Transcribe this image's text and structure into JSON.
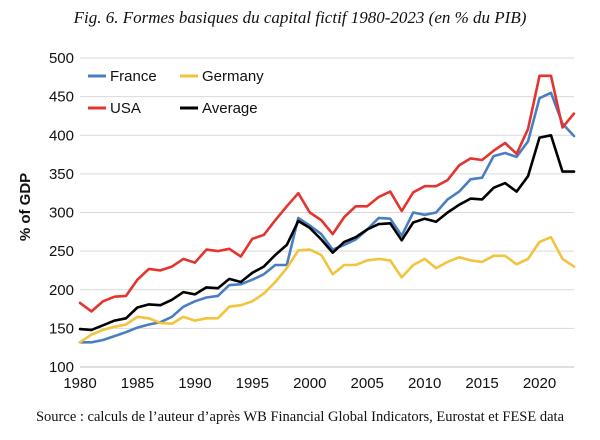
{
  "caption": {
    "title": "Fig. 6. Formes basiques du capital fictif 1980-2023 (en % du PIB)",
    "source": "Source : calculs de l’auteur d’après WB Financial Global Indicators, Eurostat et FESE data"
  },
  "chart_data": {
    "type": "line",
    "title": "Fig. 6. Formes basiques du capital fictif 1980-2023 (en % du PIB)",
    "xlabel": "",
    "ylabel": "% of GDP",
    "xlim": [
      1980,
      2023
    ],
    "ylim": [
      100,
      500
    ],
    "x_ticks": [
      1980,
      1985,
      1990,
      1995,
      2000,
      2005,
      2010,
      2015,
      2020
    ],
    "y_ticks": [
      100,
      150,
      200,
      250,
      300,
      350,
      400,
      450,
      500
    ],
    "grid": "horizontal",
    "legend_position": "top-left",
    "x": [
      1980,
      1981,
      1982,
      1983,
      1984,
      1985,
      1986,
      1987,
      1988,
      1989,
      1990,
      1991,
      1992,
      1993,
      1994,
      1995,
      1996,
      1997,
      1998,
      1999,
      2000,
      2001,
      2002,
      2003,
      2004,
      2005,
      2006,
      2007,
      2008,
      2009,
      2010,
      2011,
      2012,
      2013,
      2014,
      2015,
      2016,
      2017,
      2018,
      2019,
      2020,
      2021,
      2022,
      2023
    ],
    "series": [
      {
        "name": "France",
        "color": "#4a7ec2",
        "values": [
          132,
          132,
          135,
          140,
          145,
          151,
          155,
          158,
          165,
          178,
          185,
          190,
          192,
          206,
          207,
          213,
          220,
          232,
          232,
          293,
          283,
          272,
          252,
          258,
          265,
          278,
          293,
          292,
          270,
          300,
          297,
          300,
          317,
          327,
          343,
          345,
          373,
          377,
          372,
          392,
          448,
          455,
          415,
          399
        ]
      },
      {
        "name": "Germany",
        "color": "#f2c33c",
        "values": [
          132,
          142,
          148,
          152,
          155,
          165,
          163,
          157,
          156,
          165,
          160,
          163,
          163,
          178,
          180,
          185,
          195,
          210,
          228,
          251,
          252,
          245,
          220,
          232,
          232,
          238,
          240,
          238,
          216,
          232,
          240,
          228,
          236,
          242,
          238,
          236,
          244,
          244,
          233,
          240,
          262,
          268,
          240,
          230
        ]
      },
      {
        "name": "USA",
        "color": "#e3342f",
        "values": [
          183,
          172,
          185,
          191,
          192,
          213,
          227,
          225,
          230,
          240,
          235,
          252,
          250,
          253,
          243,
          266,
          271,
          290,
          308,
          325,
          300,
          290,
          272,
          294,
          308,
          308,
          320,
          327,
          302,
          326,
          334,
          334,
          342,
          361,
          370,
          368,
          380,
          390,
          376,
          408,
          477,
          477,
          410,
          428
        ]
      },
      {
        "name": "Average",
        "color": "#000000",
        "values": [
          149,
          148,
          154,
          160,
          163,
          177,
          181,
          180,
          187,
          197,
          194,
          203,
          202,
          214,
          210,
          222,
          230,
          245,
          258,
          289,
          280,
          265,
          248,
          262,
          268,
          278,
          285,
          286,
          264,
          287,
          292,
          288,
          300,
          310,
          318,
          317,
          332,
          338,
          327,
          347,
          397,
          400,
          353,
          353
        ]
      }
    ]
  }
}
